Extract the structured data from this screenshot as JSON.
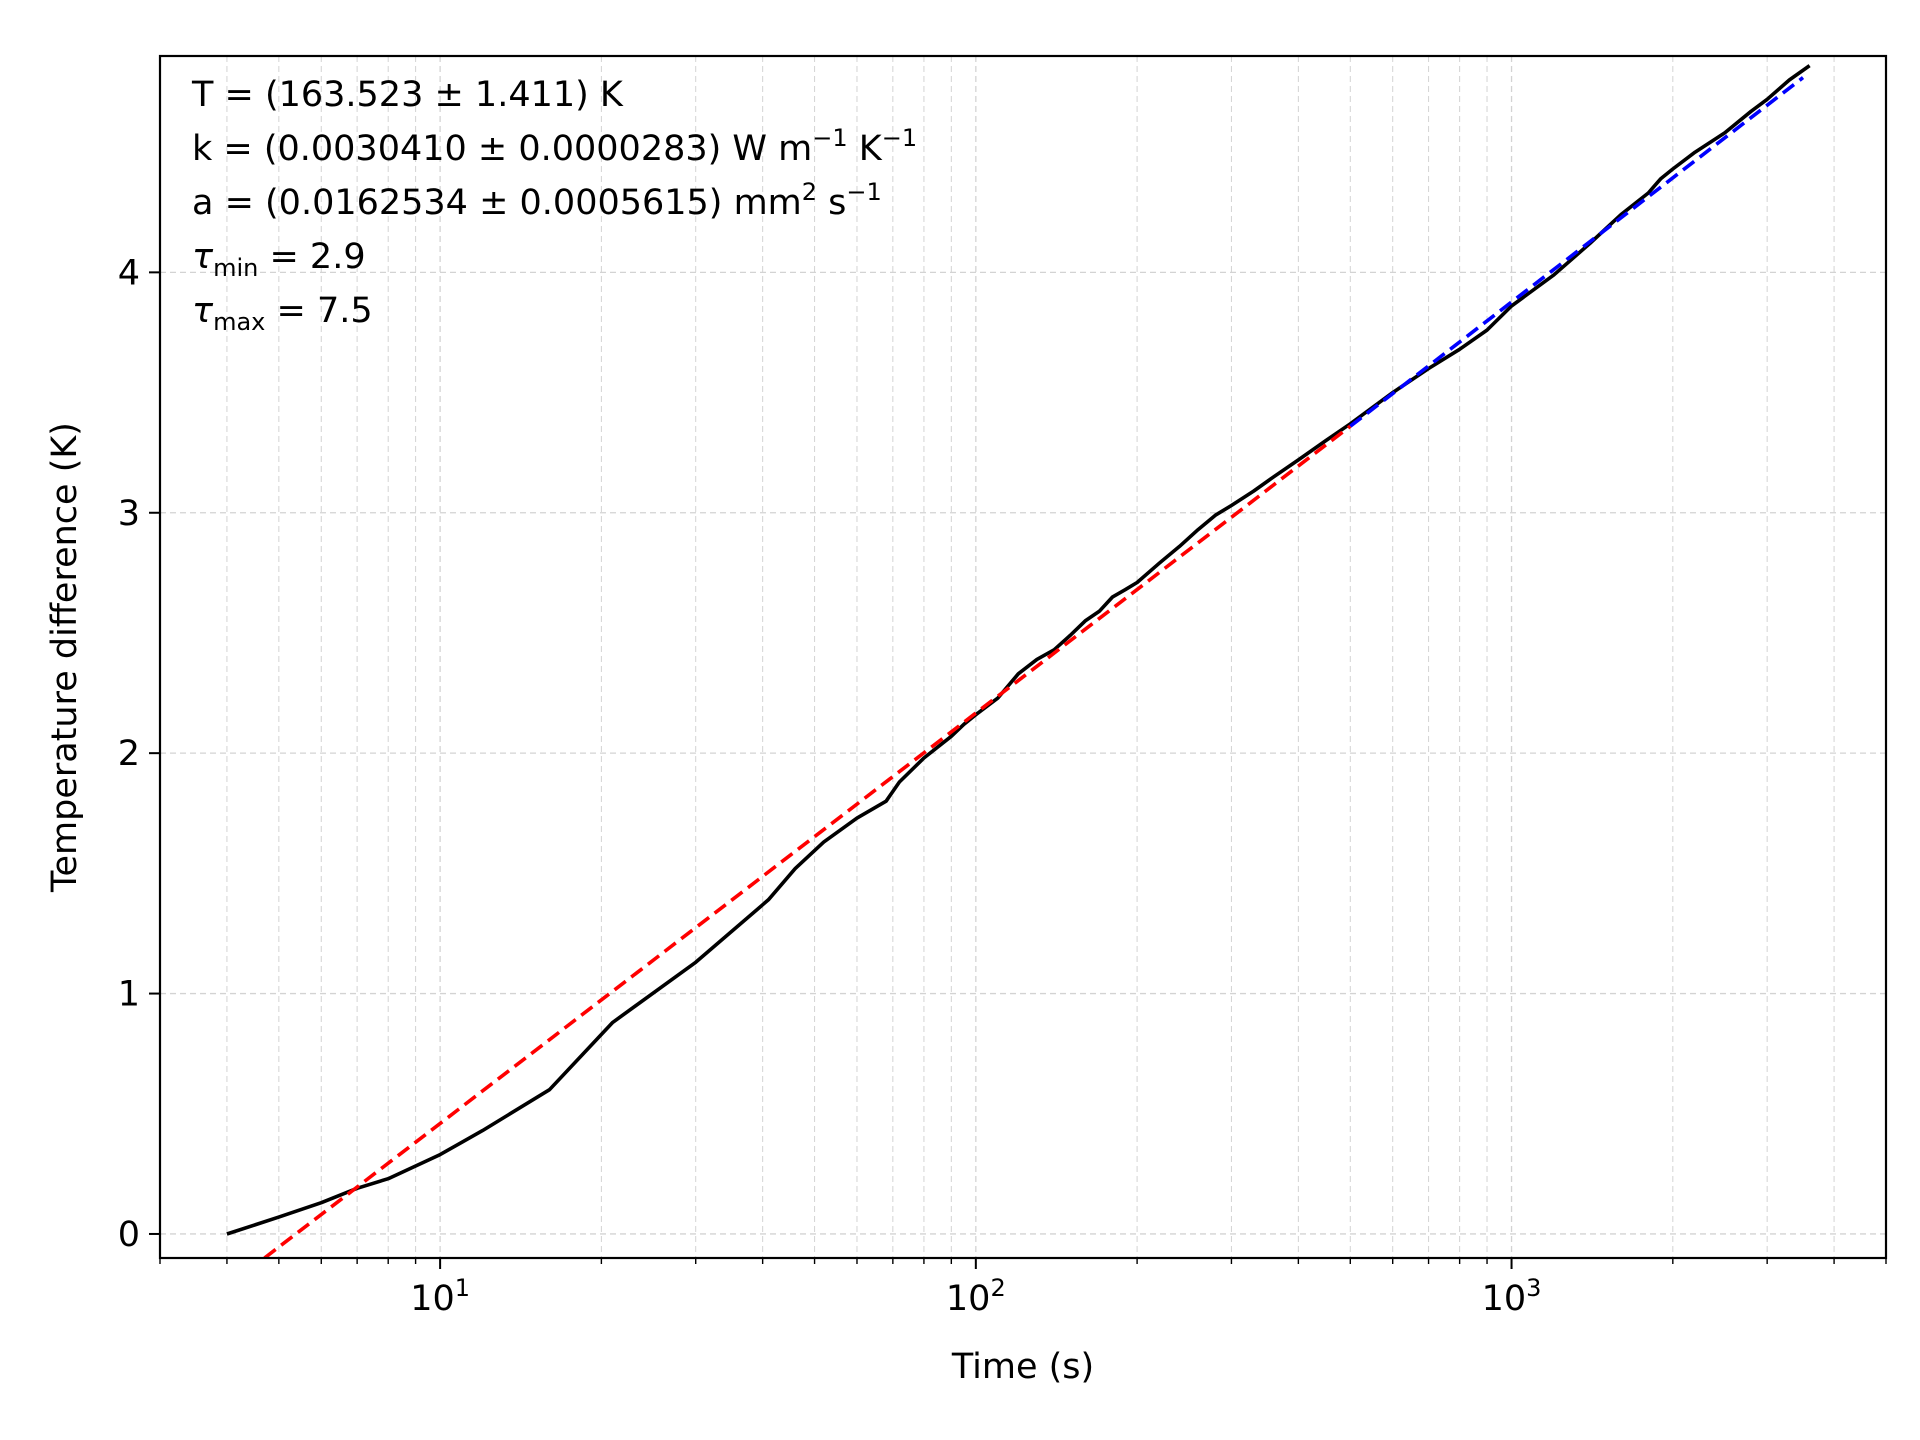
{
  "chart_data": {
    "type": "line",
    "xlabel": "Time (s)",
    "ylabel": "Temperature difference (K)",
    "xscale": "log",
    "xlim": [
      3,
      5000
    ],
    "ylim": [
      -0.1,
      4.9
    ],
    "grid": true,
    "x_ticks": [
      {
        "value": 10,
        "base": "10",
        "exp": "1"
      },
      {
        "value": 100,
        "base": "10",
        "exp": "2"
      },
      {
        "value": 1000,
        "base": "10",
        "exp": "3"
      }
    ],
    "y_ticks": [
      {
        "value": 0,
        "label": "0"
      },
      {
        "value": 1,
        "label": "1"
      },
      {
        "value": 2,
        "label": "2"
      },
      {
        "value": 3,
        "label": "3"
      },
      {
        "value": 4,
        "label": "4"
      }
    ],
    "annotations": [
      {
        "parts": [
          {
            "t": "T = (163.523 ± 1.411) K"
          }
        ]
      },
      {
        "parts": [
          {
            "t": "k = (0.0030410 ± 0.0000283) W m"
          },
          {
            "t": "−1",
            "sup": true
          },
          {
            "t": " K"
          },
          {
            "t": "−1",
            "sup": true
          }
        ]
      },
      {
        "parts": [
          {
            "t": "a = (0.0162534 ± 0.0005615) mm"
          },
          {
            "t": "2",
            "sup": true
          },
          {
            "t": " s"
          },
          {
            "t": "−1",
            "sup": true
          }
        ]
      },
      {
        "parts": [
          {
            "t": "τ",
            "italic": true
          },
          {
            "t": "min",
            "sub": true
          },
          {
            "t": " = 2.9"
          }
        ]
      },
      {
        "parts": [
          {
            "t": "τ",
            "italic": true
          },
          {
            "t": "max",
            "sub": true
          },
          {
            "t": " = 7.5"
          }
        ]
      }
    ],
    "series": [
      {
        "color": "#000000",
        "style": "solid",
        "x": [
          4,
          5,
          6,
          7,
          8,
          10,
          12,
          16,
          21,
          30,
          41,
          46,
          52,
          60,
          68,
          72,
          80,
          90,
          95,
          100,
          110,
          120,
          130,
          140,
          150,
          160,
          170,
          180,
          190,
          200,
          220,
          240,
          260,
          280,
          300,
          330,
          360,
          400,
          450,
          500,
          600,
          700,
          800,
          900,
          1000,
          1200,
          1400,
          1600,
          1800,
          1900,
          2000,
          2200,
          2500,
          2800,
          3000,
          3300,
          3600
        ],
        "y": [
          0.0,
          0.07,
          0.13,
          0.19,
          0.23,
          0.33,
          0.43,
          0.6,
          0.88,
          1.13,
          1.39,
          1.52,
          1.63,
          1.73,
          1.8,
          1.88,
          1.98,
          2.07,
          2.12,
          2.16,
          2.23,
          2.33,
          2.39,
          2.43,
          2.49,
          2.55,
          2.59,
          2.65,
          2.68,
          2.71,
          2.79,
          2.86,
          2.93,
          2.99,
          3.03,
          3.09,
          3.15,
          3.22,
          3.3,
          3.37,
          3.5,
          3.6,
          3.68,
          3.76,
          3.86,
          3.99,
          4.12,
          4.24,
          4.33,
          4.39,
          4.43,
          4.5,
          4.58,
          4.67,
          4.72,
          4.8,
          4.86
        ]
      },
      {
        "color": "#ff0000",
        "style": "dashed",
        "x": [
          4.7,
          500
        ],
        "y": [
          -0.1,
          3.36
        ]
      },
      {
        "color": "#0000ff",
        "style": "dashed",
        "x": [
          500,
          3500
        ],
        "y": [
          3.36,
          4.81
        ]
      }
    ]
  }
}
